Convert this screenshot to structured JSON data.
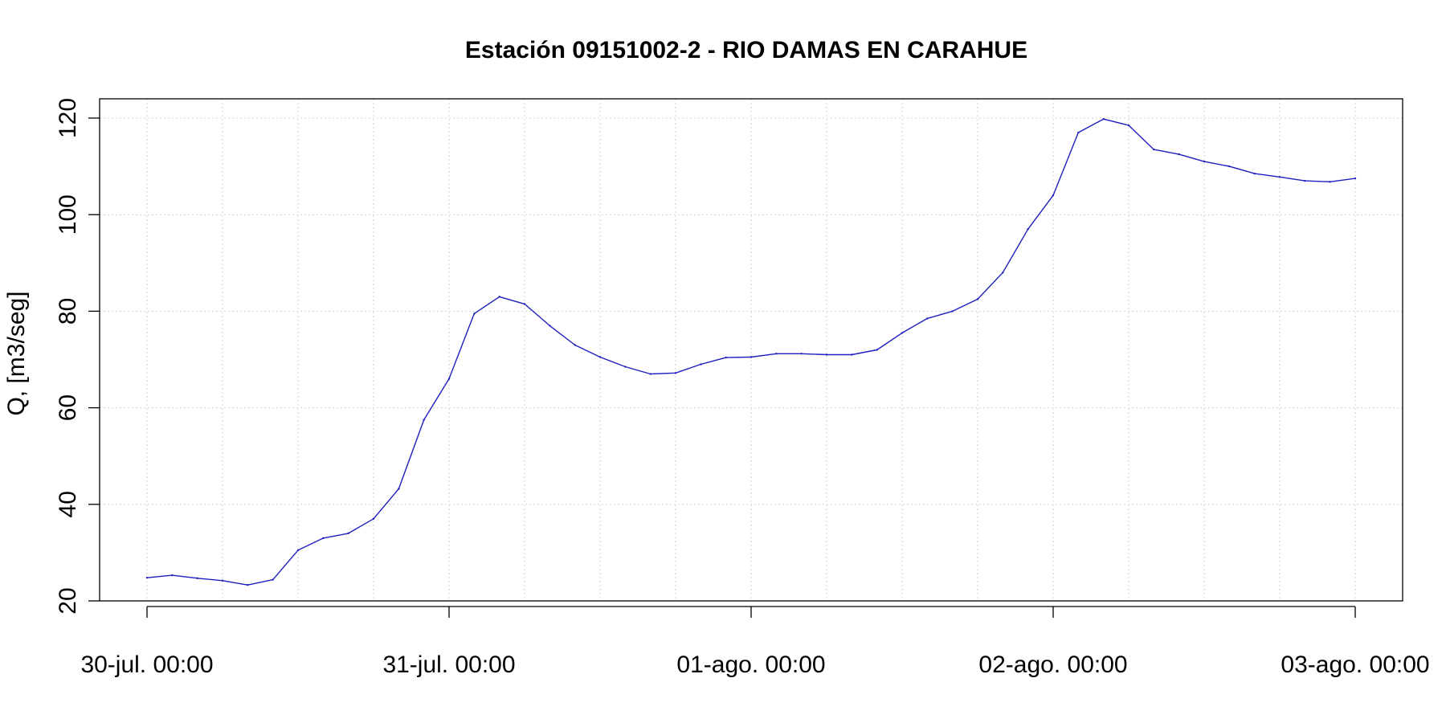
{
  "chart_data": {
    "type": "line",
    "title": "Estación 09151002-2 - RIO DAMAS EN CARAHUE",
    "xlabel": "",
    "ylabel": "Q, [m3/seg]",
    "ylim": [
      20,
      120
    ],
    "xlim": [
      "2030-07-30 00:00",
      "2030-08-03 00:00"
    ],
    "grid": true,
    "legend": "none",
    "colors": {
      "line": "#1f1fbf",
      "grid": "#d3d3d3",
      "axis": "#000000"
    },
    "x_ticks": [
      {
        "label": "30-jul. 00:00",
        "x": "07-30 00:00"
      },
      {
        "label": "31-jul. 00:00",
        "x": "07-31 00:00"
      },
      {
        "label": "01-ago. 00:00",
        "x": "08-01 00:00"
      },
      {
        "label": "02-ago. 00:00",
        "x": "08-02 00:00"
      },
      {
        "label": "03-ago. 00:00",
        "x": "08-03 00:00"
      }
    ],
    "y_ticks": [
      "20",
      "40",
      "60",
      "80",
      "100",
      "120"
    ],
    "series": [
      {
        "x": [
          "07-30 00:00",
          "07-30 02:00",
          "07-30 04:00",
          "07-30 06:00",
          "07-30 08:00",
          "07-30 10:00",
          "07-30 12:00",
          "07-30 14:00",
          "07-30 16:00",
          "07-30 18:00",
          "07-30 20:00",
          "07-30 22:00",
          "07-31 00:00",
          "07-31 02:00",
          "07-31 04:00",
          "07-31 06:00",
          "07-31 08:00",
          "07-31 10:00",
          "07-31 12:00",
          "07-31 14:00",
          "07-31 16:00",
          "07-31 18:00",
          "07-31 20:00",
          "07-31 22:00",
          "08-01 00:00",
          "08-01 02:00",
          "08-01 04:00",
          "08-01 06:00",
          "08-01 08:00",
          "08-01 10:00",
          "08-01 12:00",
          "08-01 14:00",
          "08-01 16:00",
          "08-01 18:00",
          "08-01 20:00",
          "08-01 22:00",
          "08-02 00:00",
          "08-02 02:00",
          "08-02 04:00",
          "08-02 06:00",
          "08-02 08:00",
          "08-02 10:00",
          "08-02 12:00",
          "08-02 14:00",
          "08-02 16:00",
          "08-02 18:00",
          "08-02 20:00",
          "08-02 22:00",
          "08-03 00:00"
        ],
        "values": [
          24.8,
          25.3,
          24.7,
          24.2,
          23.3,
          24.4,
          30.5,
          33.0,
          34.0,
          37.0,
          43.2,
          57.5,
          66.0,
          79.5,
          83.0,
          81.5,
          77.0,
          73.0,
          70.5,
          68.5,
          67.0,
          67.2,
          69.0,
          70.4,
          70.5,
          71.2,
          71.2,
          71.0,
          71.0,
          72.0,
          75.5,
          78.5,
          80.0,
          82.5,
          88.0,
          97.0,
          104.0,
          117.0,
          119.8,
          118.5,
          113.5,
          112.5,
          111.0,
          110.0,
          108.5,
          107.8,
          107.0,
          106.8,
          107.5
        ]
      }
    ]
  }
}
